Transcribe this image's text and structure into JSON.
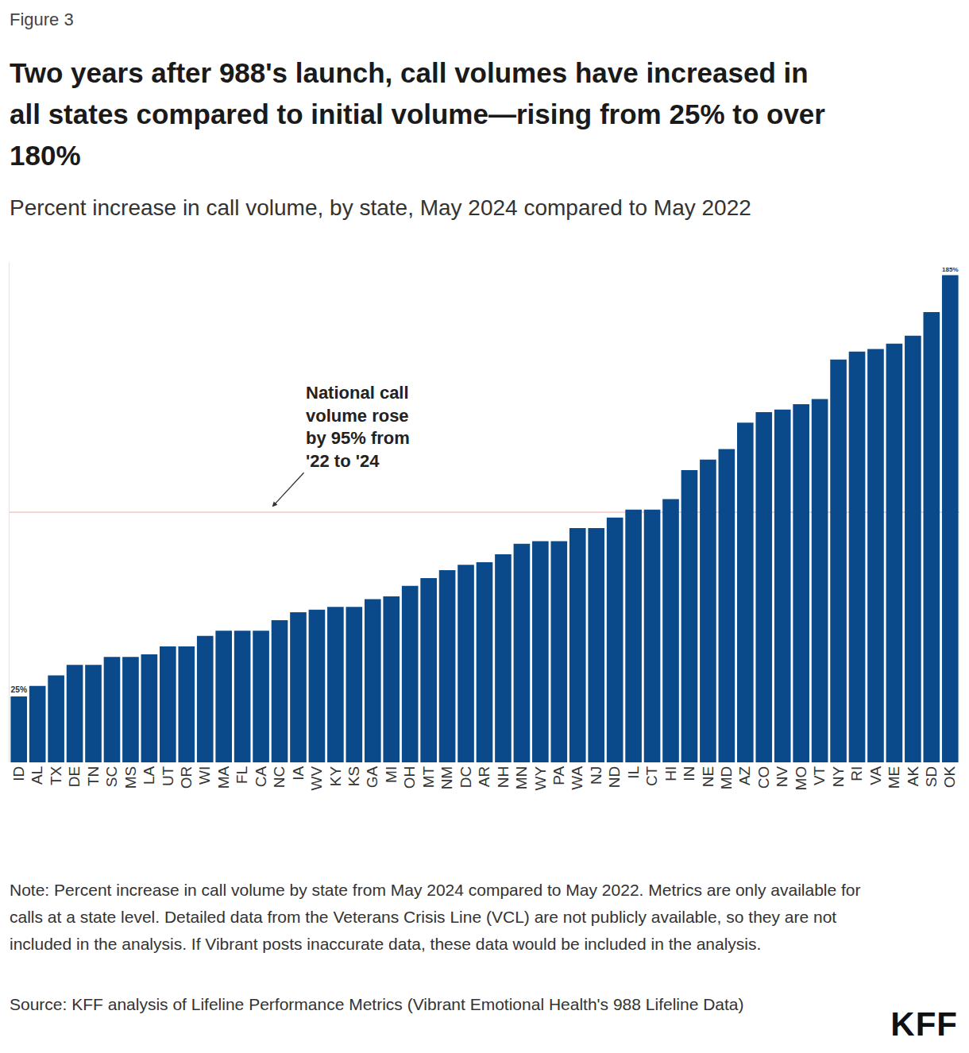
{
  "chart_data": {
    "type": "bar",
    "figure_label": "Figure 3",
    "title": [
      "Two years after 988's launch, call volumes have increased in",
      "all states compared to initial volume—rising from 25% to over",
      "180%"
    ],
    "subtitle": "Percent increase in call volume, by state, May 2024 compared to May 2022",
    "categories": [
      "ID",
      "AL",
      "TX",
      "DE",
      "TN",
      "SC",
      "MS",
      "LA",
      "UT",
      "OR",
      "WI",
      "MA",
      "FL",
      "CA",
      "NC",
      "IA",
      "WV",
      "KY",
      "KS",
      "GA",
      "MI",
      "OH",
      "MT",
      "NM",
      "DC",
      "AR",
      "NH",
      "MN",
      "WY",
      "PA",
      "WA",
      "NJ",
      "ND",
      "IL",
      "CT",
      "HI",
      "IN",
      "NE",
      "MD",
      "AZ",
      "CO",
      "NV",
      "MO",
      "VT",
      "NY",
      "RI",
      "VA",
      "ME",
      "AK",
      "SD",
      "OK"
    ],
    "values": [
      25,
      29,
      33,
      37,
      37,
      40,
      40,
      41,
      44,
      44,
      48,
      50,
      50,
      50,
      54,
      57,
      58,
      59,
      59,
      62,
      63,
      67,
      70,
      73,
      75,
      76,
      79,
      83,
      84,
      84,
      89,
      89,
      93,
      96,
      96,
      100,
      111,
      115,
      119,
      129,
      133,
      134,
      136,
      138,
      153,
      156,
      157,
      159,
      162,
      171,
      185
    ],
    "value_labels": [
      "25%",
      null,
      null,
      null,
      null,
      null,
      null,
      null,
      null,
      null,
      null,
      null,
      null,
      null,
      null,
      null,
      null,
      null,
      null,
      null,
      null,
      null,
      null,
      null,
      null,
      null,
      null,
      null,
      null,
      null,
      null,
      null,
      null,
      null,
      null,
      null,
      null,
      null,
      null,
      null,
      null,
      null,
      null,
      null,
      null,
      null,
      null,
      null,
      null,
      null,
      "185%"
    ],
    "data_labels": true,
    "color": "#0b4a8a",
    "ylim": [
      0,
      190
    ],
    "yticks": [],
    "tick_labels": "x",
    "grid": false,
    "annotations": [
      {
        "text": [
          "National call",
          "volume rose",
          "by 95% from",
          "'22 to '24"
        ],
        "y": 95
      }
    ],
    "note": "Note: Percent increase in call volume by state from May 2024 compared to May 2022. Metrics are only available for calls at a state level. Detailed data from the Veterans Crisis Line (VCL) are not publicly available, so they are not included in the analysis. If Vibrant posts inaccurate data, these data would be included in the analysis.",
    "source": "Source: KFF analysis of Lifeline Performance Metrics (Vibrant Emotional Health's 988 Lifeline Data)",
    "logo": "KFF"
  }
}
